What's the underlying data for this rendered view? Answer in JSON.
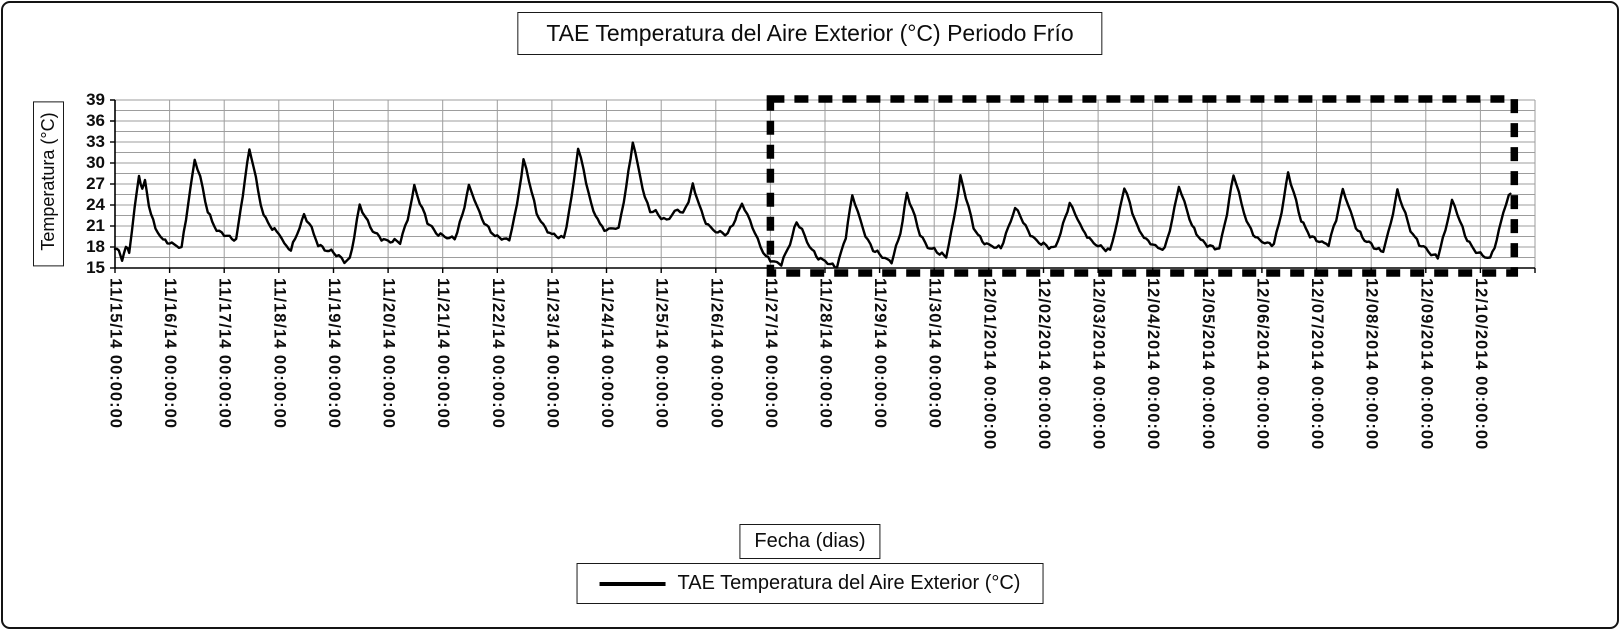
{
  "chart_data": {
    "type": "line",
    "title": "TAE Temperatura del Aire Exterior (°C) Periodo Frío",
    "xlabel": "Fecha (dias)",
    "ylabel": "Temperatura (°C)",
    "ylim": [
      15,
      39
    ],
    "yticks": [
      39,
      36,
      33,
      30,
      27,
      24,
      21,
      18,
      15
    ],
    "y_minor_step": 1.5,
    "grid": "both",
    "legend_position": "bottom",
    "x_unit": "days since 11/15/2014 00:00:00",
    "x_labels": [
      "11/15/14 00:00:00",
      "11/16/14 00:00:00",
      "11/17/14 00:00:00",
      "11/18/14 00:00:00",
      "11/19/14 00:00:00",
      "11/20/14 00:00:00",
      "11/21/14 00:00:00",
      "11/22/14 00:00:00",
      "11/23/14 00:00:00",
      "11/24/14 00:00:00",
      "11/25/14 00:00:00",
      "11/26/14 00:00:00",
      "11/27/14 00:00:00",
      "11/28/14 00:00:00",
      "11/29/14 00:00:00",
      "11/30/14 00:00:00",
      "12/01/2014 00:00:00",
      "12/02/2014 00:00:00",
      "12/03/2014 00:00:00",
      "12/04/2014 00:00:00",
      "12/05/2014 00:00:00",
      "12/06/2014 00:00:00",
      "12/07/2014 00:00:00",
      "12/08/2014 00:00:00",
      "12/09/2014 00:00:00",
      "12/10/2014 00:00:00"
    ],
    "highlight_region": {
      "style": "thick-dashed-rectangle",
      "color": "#000000",
      "start_day": 12,
      "end_day": 25.62,
      "start_label": "11/27/14 00:00:00",
      "end_label": "12/10/2014 00:00:00"
    },
    "series": [
      {
        "name": "TAE Temperatura del Aire Exterior (°C)",
        "color": "#000000",
        "points": [
          [
            0,
            17.7
          ],
          [
            0.07,
            17.4
          ],
          [
            0.13,
            16.3
          ],
          [
            0.2,
            17.9
          ],
          [
            0.26,
            17.3
          ],
          [
            0.36,
            23.5
          ],
          [
            0.44,
            28.2
          ],
          [
            0.5,
            26.3
          ],
          [
            0.55,
            27.4
          ],
          [
            0.62,
            24
          ],
          [
            0.74,
            20.6
          ],
          [
            0.88,
            19
          ],
          [
            1,
            18.6
          ],
          [
            1.12,
            18.2
          ],
          [
            1.22,
            17.9
          ],
          [
            1.34,
            24.2
          ],
          [
            1.46,
            30.5
          ],
          [
            1.56,
            28
          ],
          [
            1.7,
            23
          ],
          [
            1.86,
            20.4
          ],
          [
            2,
            19.8
          ],
          [
            2.1,
            19.4
          ],
          [
            2.22,
            19
          ],
          [
            2.34,
            25.5
          ],
          [
            2.46,
            32
          ],
          [
            2.54,
            29.5
          ],
          [
            2.62,
            26
          ],
          [
            2.72,
            22.5
          ],
          [
            2.88,
            20.6
          ],
          [
            3,
            20
          ],
          [
            3.1,
            18.4
          ],
          [
            3.22,
            17.6
          ],
          [
            3.34,
            20
          ],
          [
            3.46,
            22.5
          ],
          [
            3.56,
            21.4
          ],
          [
            3.72,
            18.3
          ],
          [
            3.88,
            17.5
          ],
          [
            4,
            17.3
          ],
          [
            4.1,
            16.6
          ],
          [
            4.2,
            16
          ],
          [
            4.3,
            16.2
          ],
          [
            4.38,
            19.5
          ],
          [
            4.48,
            24
          ],
          [
            4.58,
            22.3
          ],
          [
            4.72,
            20.3
          ],
          [
            4.88,
            19.2
          ],
          [
            5,
            18.8
          ],
          [
            5.12,
            18.9
          ],
          [
            5.22,
            18.7
          ],
          [
            5.36,
            22
          ],
          [
            5.48,
            26.6
          ],
          [
            5.58,
            24.4
          ],
          [
            5.72,
            21.6
          ],
          [
            5.88,
            20
          ],
          [
            6,
            19.6
          ],
          [
            6.12,
            19.3
          ],
          [
            6.22,
            19.2
          ],
          [
            6.36,
            22.5
          ],
          [
            6.48,
            26.8
          ],
          [
            6.58,
            24.8
          ],
          [
            6.72,
            22
          ],
          [
            6.88,
            20.2
          ],
          [
            7,
            19.4
          ],
          [
            7.12,
            19.2
          ],
          [
            7.22,
            19
          ],
          [
            7.36,
            24
          ],
          [
            7.48,
            30.4
          ],
          [
            7.58,
            27.6
          ],
          [
            7.72,
            22.8
          ],
          [
            7.88,
            20.6
          ],
          [
            8,
            19.8
          ],
          [
            8.12,
            19.5
          ],
          [
            8.22,
            19.2
          ],
          [
            8.36,
            25
          ],
          [
            8.48,
            32.2
          ],
          [
            8.58,
            29
          ],
          [
            8.72,
            24
          ],
          [
            8.88,
            21.2
          ],
          [
            9,
            20.3
          ],
          [
            9.12,
            20.8
          ],
          [
            9.22,
            20.6
          ],
          [
            9.36,
            26.5
          ],
          [
            9.48,
            33
          ],
          [
            9.58,
            29.5
          ],
          [
            9.7,
            25
          ],
          [
            9.8,
            23.2
          ],
          [
            9.9,
            23
          ],
          [
            10,
            22.2
          ],
          [
            10.1,
            21.8
          ],
          [
            10.2,
            22.6
          ],
          [
            10.3,
            23.4
          ],
          [
            10.4,
            22.8
          ],
          [
            10.5,
            24.5
          ],
          [
            10.58,
            26.8
          ],
          [
            10.66,
            25
          ],
          [
            10.78,
            22
          ],
          [
            10.9,
            20.8
          ],
          [
            11,
            20.2
          ],
          [
            11.12,
            20
          ],
          [
            11.22,
            19.9
          ],
          [
            11.36,
            22
          ],
          [
            11.48,
            24.2
          ],
          [
            11.58,
            22.6
          ],
          [
            11.72,
            20
          ],
          [
            11.82,
            18
          ],
          [
            11.92,
            16.6
          ],
          [
            12,
            16.2
          ],
          [
            12.08,
            15.8
          ],
          [
            12.2,
            15.6
          ],
          [
            12.36,
            18.5
          ],
          [
            12.48,
            21.6
          ],
          [
            12.58,
            20.4
          ],
          [
            12.72,
            18
          ],
          [
            12.88,
            16.4
          ],
          [
            13,
            16
          ],
          [
            13.1,
            15.5
          ],
          [
            13.22,
            15.2
          ],
          [
            13.38,
            19.5
          ],
          [
            13.5,
            25.4
          ],
          [
            13.6,
            23
          ],
          [
            13.74,
            19.6
          ],
          [
            13.88,
            17.6
          ],
          [
            14,
            17
          ],
          [
            14.1,
            16.3
          ],
          [
            14.22,
            15.9
          ],
          [
            14.38,
            20
          ],
          [
            14.5,
            25.6
          ],
          [
            14.6,
            23.4
          ],
          [
            14.74,
            19.8
          ],
          [
            14.88,
            18
          ],
          [
            15,
            17.6
          ],
          [
            15.1,
            17.1
          ],
          [
            15.22,
            16.6
          ],
          [
            15.36,
            22
          ],
          [
            15.48,
            28
          ],
          [
            15.58,
            25.2
          ],
          [
            15.72,
            20.8
          ],
          [
            15.88,
            18.8
          ],
          [
            16,
            18.3
          ],
          [
            16.1,
            18
          ],
          [
            16.22,
            17.9
          ],
          [
            16.36,
            20.8
          ],
          [
            16.48,
            23.6
          ],
          [
            16.58,
            22.4
          ],
          [
            16.72,
            20.2
          ],
          [
            16.88,
            18.8
          ],
          [
            17,
            18.4
          ],
          [
            17.1,
            18
          ],
          [
            17.22,
            17.9
          ],
          [
            17.36,
            21.2
          ],
          [
            17.48,
            24.3
          ],
          [
            17.58,
            22.8
          ],
          [
            17.72,
            20.4
          ],
          [
            17.88,
            18.8
          ],
          [
            18,
            18.2
          ],
          [
            18.1,
            17.8
          ],
          [
            18.22,
            17.5
          ],
          [
            18.36,
            21.8
          ],
          [
            18.48,
            26.6
          ],
          [
            18.58,
            24.2
          ],
          [
            18.72,
            20.8
          ],
          [
            18.88,
            19
          ],
          [
            19,
            18.4
          ],
          [
            19.1,
            17.9
          ],
          [
            19.22,
            17.7
          ],
          [
            19.36,
            22
          ],
          [
            19.48,
            26.7
          ],
          [
            19.58,
            24.4
          ],
          [
            19.72,
            21
          ],
          [
            19.88,
            19
          ],
          [
            20,
            18.3
          ],
          [
            20.1,
            17.9
          ],
          [
            20.22,
            17.8
          ],
          [
            20.36,
            22.8
          ],
          [
            20.48,
            28.4
          ],
          [
            20.58,
            25.6
          ],
          [
            20.72,
            21.6
          ],
          [
            20.88,
            19.4
          ],
          [
            21,
            18.8
          ],
          [
            21.1,
            18.5
          ],
          [
            21.22,
            18.4
          ],
          [
            21.36,
            23
          ],
          [
            21.48,
            28.6
          ],
          [
            21.58,
            25.8
          ],
          [
            21.72,
            21.8
          ],
          [
            21.88,
            19.6
          ],
          [
            22,
            19
          ],
          [
            22.1,
            18.6
          ],
          [
            22.22,
            18.4
          ],
          [
            22.36,
            22
          ],
          [
            22.48,
            26.2
          ],
          [
            22.58,
            24
          ],
          [
            22.72,
            20.8
          ],
          [
            22.88,
            19
          ],
          [
            23,
            18.4
          ],
          [
            23.1,
            17.7
          ],
          [
            23.22,
            17.4
          ],
          [
            23.36,
            21.4
          ],
          [
            23.48,
            26
          ],
          [
            23.58,
            23.8
          ],
          [
            23.72,
            20.4
          ],
          [
            23.88,
            18.4
          ],
          [
            24,
            17.8
          ],
          [
            24.1,
            16.9
          ],
          [
            24.22,
            16.6
          ],
          [
            24.36,
            20.4
          ],
          [
            24.48,
            24.6
          ],
          [
            24.58,
            22.8
          ],
          [
            24.72,
            19.6
          ],
          [
            24.88,
            17.6
          ],
          [
            25,
            17
          ],
          [
            25.08,
            16.6
          ],
          [
            25.18,
            16.4
          ],
          [
            25.3,
            19
          ],
          [
            25.42,
            23
          ],
          [
            25.52,
            25.3
          ],
          [
            25.55,
            25.6
          ]
        ]
      }
    ]
  }
}
